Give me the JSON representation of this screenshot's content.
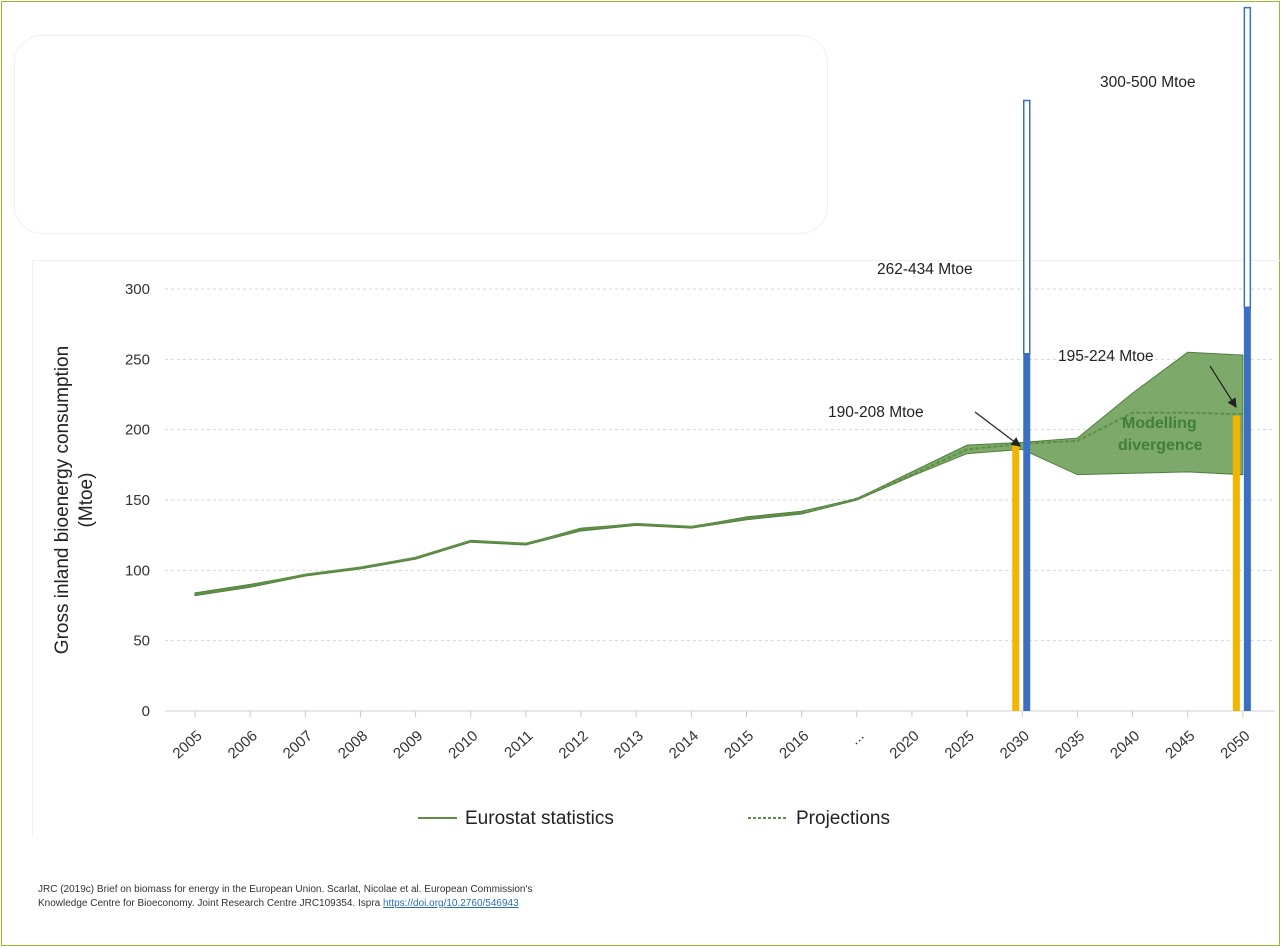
{
  "chart_data": {
    "type": "line",
    "title": "",
    "xlabel": "",
    "ylabel": "Gross inland bioenergy consumption (Mtoe)",
    "ylabel_lines": [
      "Gross inland bioenergy consumption",
      "(Mtoe)"
    ],
    "ylim": [
      0,
      300
    ],
    "yticks": [
      0,
      50,
      100,
      150,
      200,
      250,
      300
    ],
    "grid": true,
    "categories": [
      "2005",
      "2006",
      "2007",
      "2008",
      "2009",
      "2010",
      "2011",
      "2012",
      "2013",
      "2014",
      "2015",
      "2016",
      "...",
      "2020",
      "2025",
      "2030",
      "2035",
      "2040",
      "2045",
      "2050"
    ],
    "series": [
      {
        "name": "Eurostat statistics",
        "style": "solid",
        "color": "#5f8f45",
        "values": [
          83,
          89,
          97,
          102,
          109,
          121,
          119,
          129,
          133,
          131,
          137,
          141,
          null,
          null,
          null,
          null,
          null,
          null,
          null,
          null
        ]
      },
      {
        "name": "Projections",
        "style": "dashed",
        "color": "#5f8f45",
        "values": [
          null,
          null,
          null,
          null,
          null,
          null,
          null,
          null,
          null,
          null,
          null,
          141,
          151,
          168,
          186,
          190,
          192,
          212,
          212,
          211
        ]
      }
    ],
    "band": {
      "label_lines": [
        "Modelling",
        "divergence"
      ],
      "color": "#6fa15a",
      "upper": [
        84,
        90,
        97,
        102,
        109,
        121,
        119,
        130,
        133,
        131,
        138,
        142,
        151,
        170,
        189,
        191,
        194,
        226,
        255,
        253
      ],
      "lower": [
        82,
        88,
        96,
        101,
        108,
        120,
        118,
        128,
        132,
        130,
        136,
        140,
        150,
        167,
        183,
        186,
        168,
        169,
        170,
        168
      ]
    },
    "bars": [
      {
        "category": "2030",
        "orange": 190,
        "blue_solid": 254,
        "blue_range_top": 434,
        "colors": {
          "orange": "#f3b500",
          "blue": "#3a6fc4"
        }
      },
      {
        "category": "2050",
        "orange": 210,
        "blue_solid": 287,
        "blue_range_top": 500,
        "colors": {
          "orange": "#f3b500",
          "blue": "#3a6fc4"
        }
      }
    ],
    "annotations": {
      "a2030_blue": "262-434 Mtoe",
      "a2030_orange": "190-208 Mtoe",
      "a2050_blue": "300-500 Mtoe",
      "a2050_orange": "195-224 Mtoe"
    },
    "legend": {
      "position": "bottom",
      "entries": [
        "Eurostat statistics",
        "Projections"
      ]
    }
  },
  "citation": {
    "line1": "JRC (2019c) Brief on biomass for energy in the European Union. Scarlat, Nicolae et al. European Commission's",
    "line2": "Knowledge Centre for Bioeconomy. Joint Research Centre JRC109354. Ispra ",
    "link": "https://doi.org/10.2760/546943"
  }
}
